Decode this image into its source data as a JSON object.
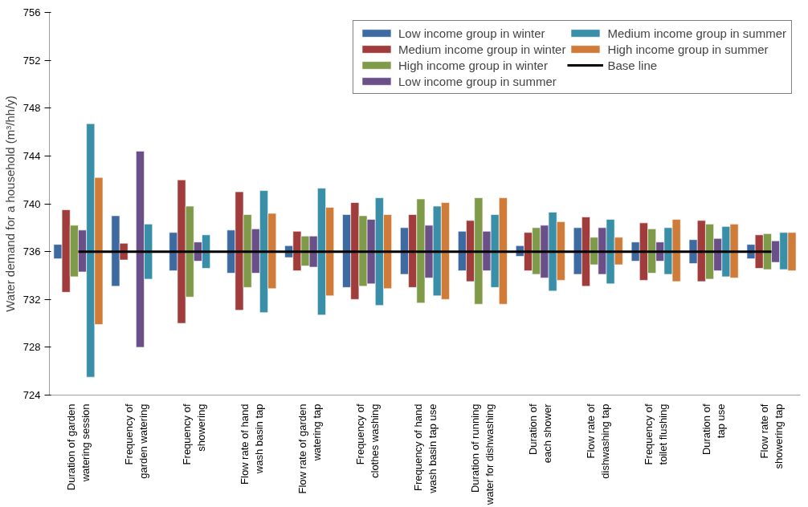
{
  "chart_data": {
    "type": "bar",
    "ylabel": "Water demand for a household (m³/hh/y)",
    "categories": [
      "Duration of garden\nwatering session",
      "Frequency of\ngarden watering",
      "Frequency of\nshowering",
      "Flow rate of hand\nwash basin tap",
      "Flow rate of garden\nwatering tap",
      "Frequency of\nclothes washing",
      "Frequency of hand\nwash basin tap use",
      "Duration of running\nwater for dishwashing",
      "Duration of\neach shower",
      "Flow rate of\ndishwashing tap",
      "Frequency of\ntoilet flushing",
      "Duration of\ntap use",
      "Flow rate of\nshowering tap"
    ],
    "ylim": [
      724,
      756
    ],
    "yticks": [
      724,
      728,
      732,
      736,
      740,
      744,
      748,
      752,
      756
    ],
    "grid": false,
    "legend": "top right",
    "series": [
      {
        "name": "Low income group in winter",
        "color": "#3d6aa0",
        "base": [
          735.4,
          733.1,
          734.4,
          734.2,
          735.5,
          733.0,
          734.1,
          734.4,
          735.6,
          734.1,
          735.2,
          735.0,
          735.4
        ],
        "values": [
          1.2,
          5.9,
          3.2,
          3.6,
          1.0,
          6.1,
          3.9,
          3.3,
          0.9,
          3.9,
          1.6,
          2.0,
          1.2
        ]
      },
      {
        "name": "Medium income group in winter",
        "color": "#a03c3c",
        "base": [
          732.6,
          735.3,
          730.0,
          731.1,
          734.4,
          732.0,
          733.0,
          733.5,
          734.4,
          733.1,
          733.6,
          733.5,
          734.6
        ],
        "values": [
          6.9,
          1.4,
          12.0,
          9.9,
          3.3,
          8.1,
          6.1,
          5.1,
          3.2,
          5.8,
          4.8,
          5.1,
          2.8
        ]
      },
      {
        "name": "High income group in winter",
        "color": "#7f9a48",
        "base": [
          733.9,
          null,
          732.2,
          733.0,
          734.8,
          733.1,
          731.7,
          731.6,
          734.1,
          734.9,
          734.2,
          733.7,
          734.5
        ],
        "values": [
          4.3,
          null,
          7.6,
          6.1,
          2.5,
          5.9,
          8.7,
          8.9,
          3.9,
          2.3,
          3.7,
          4.6,
          3.0
        ]
      },
      {
        "name": "Low income group in summer",
        "color": "#6b4f88",
        "base": [
          734.3,
          728.0,
          735.2,
          734.2,
          734.7,
          733.3,
          733.8,
          734.4,
          733.8,
          734.1,
          735.2,
          734.4,
          735.1
        ],
        "values": [
          3.5,
          16.4,
          1.6,
          3.7,
          2.6,
          5.4,
          4.4,
          3.3,
          4.4,
          3.9,
          1.6,
          2.7,
          1.8
        ]
      },
      {
        "name": "Medium income group in summer",
        "color": "#3a8fa8",
        "base": [
          725.5,
          733.7,
          734.6,
          730.9,
          730.7,
          731.5,
          732.3,
          733.0,
          732.7,
          733.3,
          734.1,
          733.9,
          734.5
        ],
        "values": [
          21.2,
          4.6,
          2.8,
          10.2,
          10.6,
          9.0,
          7.5,
          6.1,
          6.6,
          5.4,
          3.9,
          4.2,
          3.1
        ]
      },
      {
        "name": "High income group in summer",
        "color": "#d07c38",
        "base": [
          729.9,
          null,
          null,
          732.9,
          732.3,
          732.9,
          732.0,
          731.6,
          733.6,
          734.9,
          733.5,
          733.8,
          734.4
        ],
        "values": [
          12.3,
          null,
          null,
          6.3,
          7.4,
          6.2,
          8.1,
          8.9,
          4.9,
          2.3,
          5.2,
          4.5,
          3.2
        ]
      },
      {
        "name": "Base line",
        "type": "line",
        "color": "#000000",
        "values": [
          736,
          736,
          736,
          736,
          736,
          736,
          736,
          736,
          736,
          736,
          736,
          736,
          736
        ]
      }
    ]
  }
}
